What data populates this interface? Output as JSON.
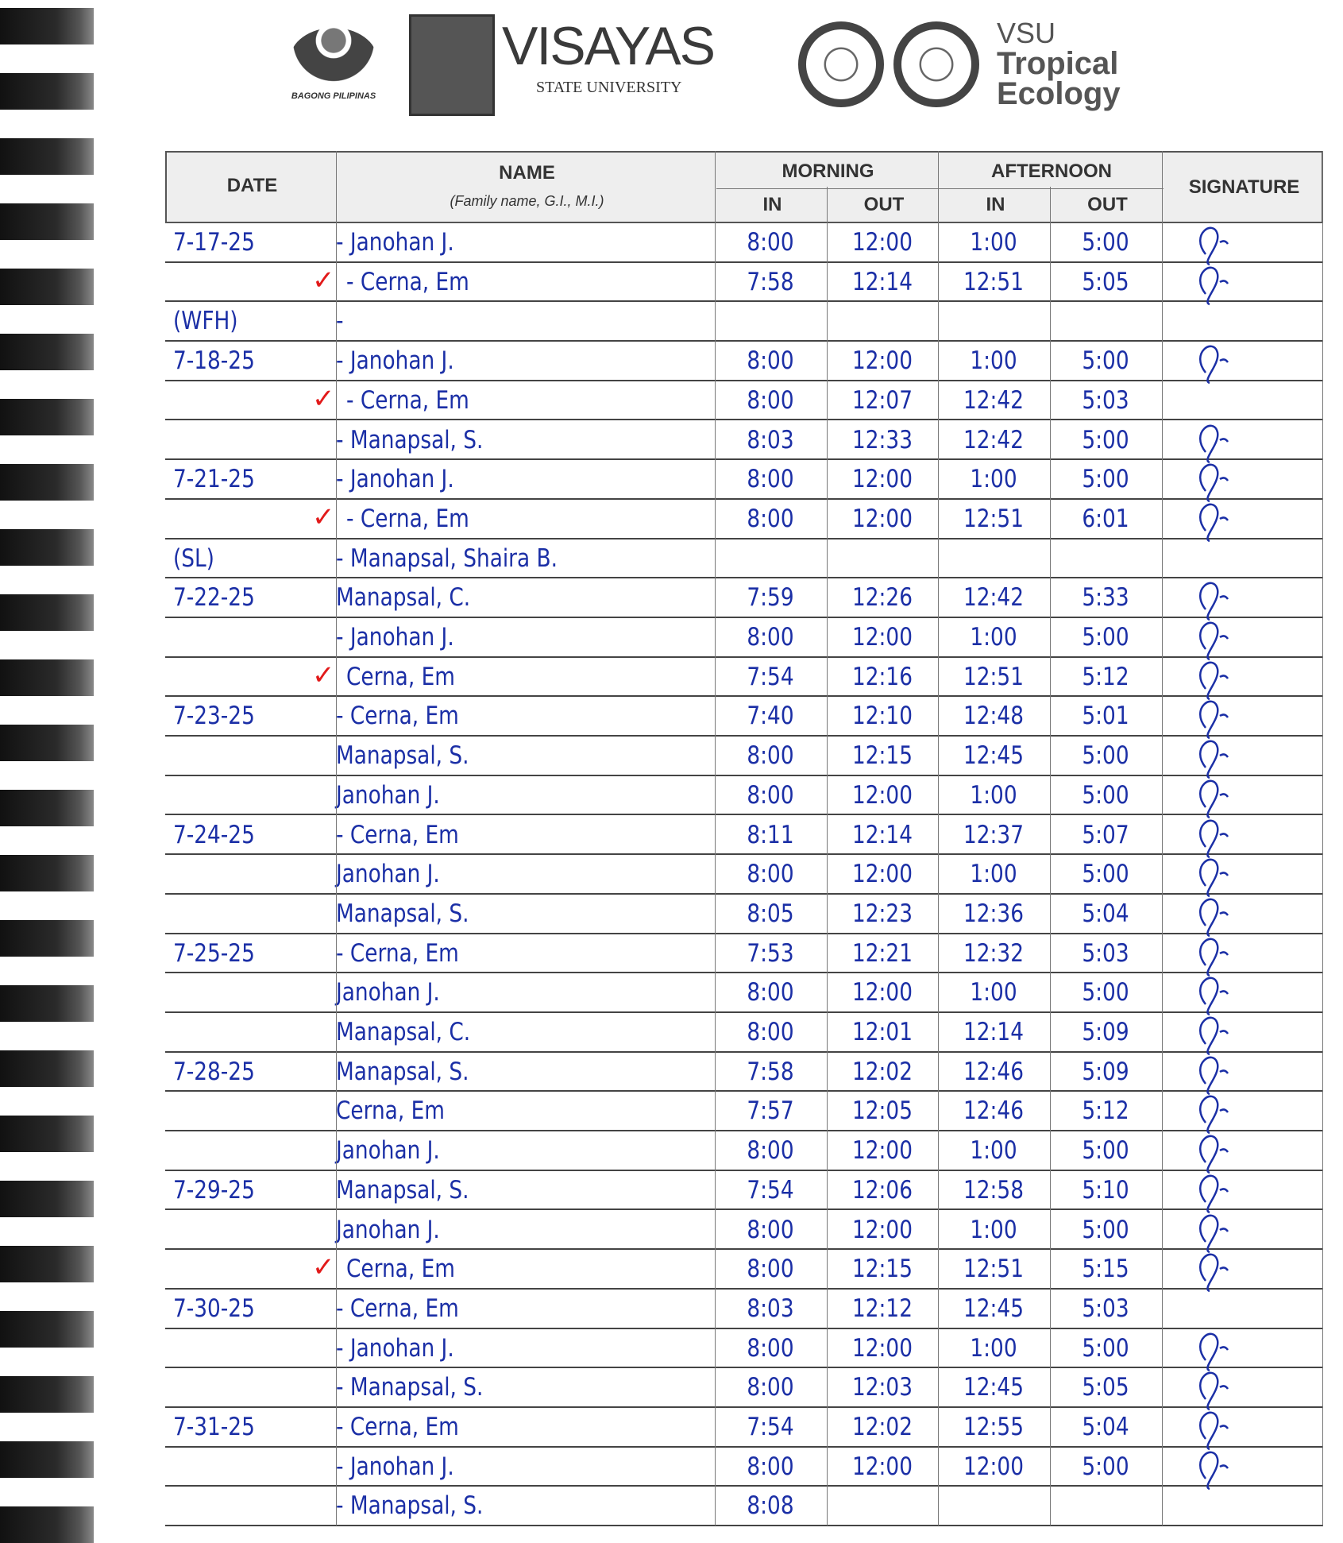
{
  "header_logos": {
    "bagong_pilipinas": "BAGONG PILIPINAS",
    "university_name": "VISAYAS",
    "university_sub": "STATE UNIVERSITY",
    "unit_line1": "VSU",
    "unit_line2": "Tropical",
    "unit_line3": "Ecology"
  },
  "table": {
    "col_date": "DATE",
    "col_name": "NAME",
    "col_name_hint": "(Family name, G.I., M.I.)",
    "col_morning": "MORNING",
    "col_afternoon": "AFTERNOON",
    "col_in": "IN",
    "col_out": "OUT",
    "col_signature": "SIGNATURE"
  },
  "colors": {
    "ink": "#1b2fa6",
    "check": "#e21a1a"
  },
  "rows": [
    {
      "date": "7-17-25",
      "name": "- Janohan J.",
      "am_in": "8:00",
      "am_out": "12:00",
      "pm_in": "1:00",
      "pm_out": "5:00",
      "check": "",
      "signed": true
    },
    {
      "date": "",
      "name": "- Cerna, Em",
      "am_in": "7:58",
      "am_out": "12:14",
      "pm_in": "12:51",
      "pm_out": "5:05",
      "check": "✓",
      "signed": true
    },
    {
      "date": "(WFH)",
      "name": "-",
      "am_in": "",
      "am_out": "",
      "pm_in": "",
      "pm_out": "",
      "check": "",
      "signed": false
    },
    {
      "date": "7-18-25",
      "name": "- Janohan J.",
      "am_in": "8:00",
      "am_out": "12:00",
      "pm_in": "1:00",
      "pm_out": "5:00",
      "check": "",
      "signed": true
    },
    {
      "date": "",
      "name": "- Cerna, Em",
      "am_in": "8:00",
      "am_out": "12:07",
      "pm_in": "12:42",
      "pm_out": "5:03",
      "check": "✓",
      "signed": false
    },
    {
      "date": "",
      "name": "- Manapsal, S.",
      "am_in": "8:03",
      "am_out": "12:33",
      "pm_in": "12:42",
      "pm_out": "5:00",
      "check": "",
      "signed": true
    },
    {
      "date": "7-21-25",
      "name": "- Janohan J.",
      "am_in": "8:00",
      "am_out": "12:00",
      "pm_in": "1:00",
      "pm_out": "5:00",
      "check": "",
      "signed": true
    },
    {
      "date": "",
      "name": "- Cerna, Em",
      "am_in": "8:00",
      "am_out": "12:00",
      "pm_in": "12:51",
      "pm_out": "6:01",
      "check": "✓",
      "signed": true
    },
    {
      "date": "(SL)",
      "name": "- Manapsal, Shaira B.",
      "am_in": "",
      "am_out": "",
      "pm_in": "",
      "pm_out": "",
      "check": "",
      "signed": false
    },
    {
      "date": "7-22-25",
      "name": "Manapsal, C.",
      "am_in": "7:59",
      "am_out": "12:26",
      "pm_in": "12:42",
      "pm_out": "5:33",
      "check": "",
      "signed": true
    },
    {
      "date": "",
      "name": "- Janohan J.",
      "am_in": "8:00",
      "am_out": "12:00",
      "pm_in": "1:00",
      "pm_out": "5:00",
      "check": "",
      "signed": true
    },
    {
      "date": "",
      "name": "Cerna, Em",
      "am_in": "7:54",
      "am_out": "12:16",
      "pm_in": "12:51",
      "pm_out": "5:12",
      "check": "✓",
      "signed": true
    },
    {
      "date": "7-23-25",
      "name": "- Cerna, Em",
      "am_in": "7:40",
      "am_out": "12:10",
      "pm_in": "12:48",
      "pm_out": "5:01",
      "check": "",
      "signed": true
    },
    {
      "date": "",
      "name": "Manapsal, S.",
      "am_in": "8:00",
      "am_out": "12:15",
      "pm_in": "12:45",
      "pm_out": "5:00",
      "check": "",
      "signed": true
    },
    {
      "date": "",
      "name": "Janohan J.",
      "am_in": "8:00",
      "am_out": "12:00",
      "pm_in": "1:00",
      "pm_out": "5:00",
      "check": "",
      "signed": true
    },
    {
      "date": "7-24-25",
      "name": "- Cerna, Em",
      "am_in": "8:11",
      "am_out": "12:14",
      "pm_in": "12:37",
      "pm_out": "5:07",
      "check": "",
      "signed": true
    },
    {
      "date": "",
      "name": "Janohan J.",
      "am_in": "8:00",
      "am_out": "12:00",
      "pm_in": "1:00",
      "pm_out": "5:00",
      "check": "",
      "signed": true
    },
    {
      "date": "",
      "name": "Manapsal, S.",
      "am_in": "8:05",
      "am_out": "12:23",
      "pm_in": "12:36",
      "pm_out": "5:04",
      "check": "",
      "signed": true
    },
    {
      "date": "7-25-25",
      "name": "- Cerna, Em",
      "am_in": "7:53",
      "am_out": "12:21",
      "pm_in": "12:32",
      "pm_out": "5:03",
      "check": "",
      "signed": true
    },
    {
      "date": "",
      "name": "Janohan J.",
      "am_in": "8:00",
      "am_out": "12:00",
      "pm_in": "1:00",
      "pm_out": "5:00",
      "check": "",
      "signed": true
    },
    {
      "date": "",
      "name": "Manapsal, C.",
      "am_in": "8:00",
      "am_out": "12:01",
      "pm_in": "12:14",
      "pm_out": "5:09",
      "check": "",
      "signed": true
    },
    {
      "date": "7-28-25",
      "name": "Manapsal, S.",
      "am_in": "7:58",
      "am_out": "12:02",
      "pm_in": "12:46",
      "pm_out": "5:09",
      "check": "",
      "signed": true
    },
    {
      "date": "",
      "name": "Cerna, Em",
      "am_in": "7:57",
      "am_out": "12:05",
      "pm_in": "12:46",
      "pm_out": "5:12",
      "check": "",
      "signed": true
    },
    {
      "date": "",
      "name": "Janohan J.",
      "am_in": "8:00",
      "am_out": "12:00",
      "pm_in": "1:00",
      "pm_out": "5:00",
      "check": "",
      "signed": true
    },
    {
      "date": "7-29-25",
      "name": "Manapsal, S.",
      "am_in": "7:54",
      "am_out": "12:06",
      "pm_in": "12:58",
      "pm_out": "5:10",
      "check": "",
      "signed": true
    },
    {
      "date": "",
      "name": "Janohan J.",
      "am_in": "8:00",
      "am_out": "12:00",
      "pm_in": "1:00",
      "pm_out": "5:00",
      "check": "",
      "signed": true
    },
    {
      "date": "",
      "name": "Cerna, Em",
      "am_in": "8:00",
      "am_out": "12:15",
      "pm_in": "12:51",
      "pm_out": "5:15",
      "check": "✓",
      "signed": true
    },
    {
      "date": "7-30-25",
      "name": "- Cerna, Em",
      "am_in": "8:03",
      "am_out": "12:12",
      "pm_in": "12:45",
      "pm_out": "5:03",
      "check": "",
      "signed": false
    },
    {
      "date": "",
      "name": "- Janohan J.",
      "am_in": "8:00",
      "am_out": "12:00",
      "pm_in": "1:00",
      "pm_out": "5:00",
      "check": "",
      "signed": true
    },
    {
      "date": "",
      "name": "- Manapsal, S.",
      "am_in": "8:00",
      "am_out": "12:03",
      "pm_in": "12:45",
      "pm_out": "5:05",
      "check": "",
      "signed": true
    },
    {
      "date": "7-31-25",
      "name": "- Cerna, Em",
      "am_in": "7:54",
      "am_out": "12:02",
      "pm_in": "12:55",
      "pm_out": "5:04",
      "check": "",
      "signed": true
    },
    {
      "date": "",
      "name": "- Janohan J.",
      "am_in": "8:00",
      "am_out": "12:00",
      "pm_in": "12:00",
      "pm_out": "5:00",
      "check": "",
      "signed": true
    },
    {
      "date": "",
      "name": "- Manapsal, S.",
      "am_in": "8:08",
      "am_out": "",
      "pm_in": "",
      "pm_out": "",
      "check": "",
      "signed": false
    }
  ]
}
